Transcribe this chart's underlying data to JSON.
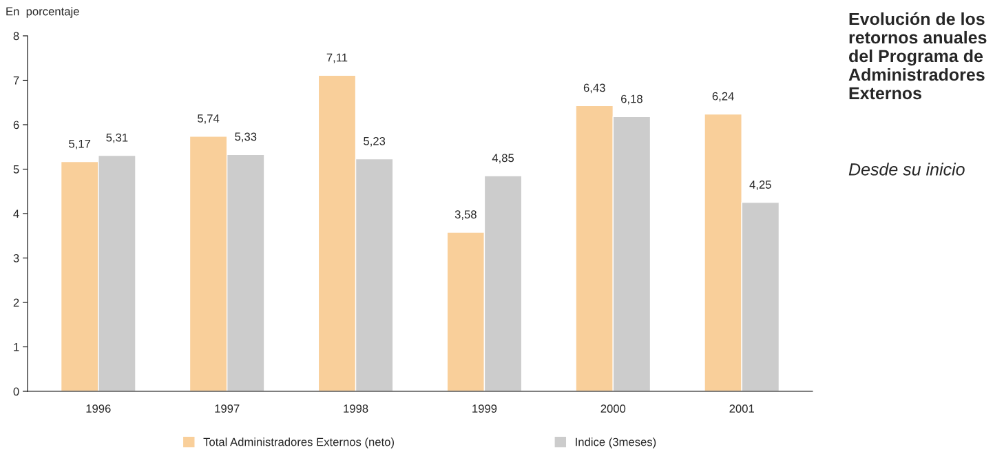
{
  "chart_data": {
    "type": "bar",
    "title": "Evolución de los retornos anuales del Programa de Administradores Externos",
    "subtitle": "Desde su inicio",
    "ylabel": "En  porcentaje",
    "categories": [
      "1996",
      "1997",
      "1998",
      "1999",
      "2000",
      "2001"
    ],
    "series": [
      {
        "name": "Total Administradores Externos (neto)",
        "color": "#f9cf9a",
        "values": [
          5.17,
          5.74,
          7.11,
          3.58,
          6.43,
          6.24
        ],
        "value_labels": [
          "5,17",
          "5,74",
          "7,11",
          "3,58",
          "6,43",
          "6,24"
        ]
      },
      {
        "name": "Indice (3meses)",
        "color": "#cccccc",
        "values": [
          5.31,
          5.33,
          5.23,
          4.85,
          6.18,
          4.25
        ],
        "value_labels": [
          "5,31",
          "5,33",
          "5,23",
          "4,85",
          "6,18",
          "4,25"
        ]
      }
    ],
    "ylim": [
      0,
      8
    ],
    "yticks": [
      0,
      1,
      2,
      3,
      4,
      5,
      6,
      7,
      8
    ],
    "grid": false,
    "legend": "bottom"
  }
}
